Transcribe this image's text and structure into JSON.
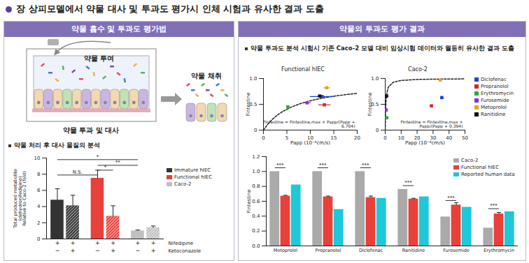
{
  "header": {
    "title": "장 상피모델에서 약물 대사 및 투과도 평가시 인체 시험과 유사한 결과 도출"
  },
  "left_panel": {
    "title": "약물 흡수 및 투과도 평가법",
    "diagram": {
      "dose": "약물 투여",
      "collect": "약물 채취",
      "transport": "약물 투과 및 대사"
    },
    "subheading": "약물 처리 후 대사 물질의 분석"
  },
  "right_panel": {
    "title": "약물의 투과도 평가 결과",
    "subheading": "약물 투과도 분석 시험시 기존 Caco-2 모델 대비 임상시험 데이터와 월등히 유사한 결과 도출"
  },
  "chart_data": [
    {
      "type": "bar",
      "ylabel": [
        "Total produced metabolite",
        "(dehydronifedipine)",
        "Relative to Caco-2 (fold)"
      ],
      "ylim": [
        0,
        10
      ],
      "yticks": [
        0,
        2,
        4,
        6,
        8,
        10
      ],
      "x_rows": [
        {
          "label": "Nifedipine",
          "values": [
            "+",
            "+",
            "+",
            "+",
            "+",
            "+"
          ]
        },
        {
          "label": "Ketoconazole",
          "values": [
            "−",
            "+",
            "−",
            "+",
            "−",
            "+"
          ]
        }
      ],
      "series": [
        {
          "name": "Immature hIEC",
          "color": "#333333",
          "values": [
            4.8,
            4.1
          ],
          "errors": [
            1.4,
            1.3
          ]
        },
        {
          "name": "Functional hIEC",
          "color": "#e8403a",
          "values": [
            7.5,
            2.8
          ],
          "errors": [
            1.0,
            1.3
          ]
        },
        {
          "name": "Caco-2",
          "color": "#c0c0c0",
          "values": [
            1.0,
            1.4
          ],
          "errors": [
            0.1,
            0.2
          ]
        }
      ],
      "annotations": [
        {
          "label": "*",
          "from": 0,
          "to": 4,
          "y": 9.8
        },
        {
          "label": "**",
          "from": 2,
          "to": 4,
          "y": 9.1
        },
        {
          "label": "*",
          "from": 2,
          "to": 3,
          "y": 8.5
        },
        {
          "label": "N.S.",
          "from": 0,
          "to": 2,
          "y": 7.9
        }
      ],
      "legend": "right"
    },
    {
      "type": "scatter",
      "title": "Functional hIEC",
      "xlabel": "Papp (10⁻⁶cm/s)",
      "ylabel": "Fintestine",
      "marker": "square",
      "xlim": [
        0,
        20
      ],
      "xticks": [
        0,
        5,
        10,
        15,
        20
      ],
      "ylim": [
        0,
        1
      ],
      "yticks": [
        0,
        0.5,
        {
          "value": 1,
          "label": "1.0"
        }
      ],
      "series": [
        {
          "name": "Diclofenac",
          "color": "#2040e0",
          "x": [
            12.5
          ],
          "values": [
            0.65
          ],
          "x_errors": [
            2.6
          ]
        },
        {
          "name": "Propranolol",
          "color": "#e02424",
          "x": [
            13.0
          ],
          "values": [
            0.49
          ],
          "x_errors": [
            1.3
          ]
        },
        {
          "name": "Erythromycin",
          "color": "#2faa3a",
          "x": [
            5.2
          ],
          "values": [
            0.45
          ],
          "x_errors": [
            0.3
          ]
        },
        {
          "name": "Furosemide",
          "color": "#8b2fd6",
          "x": [
            9.3
          ],
          "values": [
            0.53
          ],
          "x_errors": [
            0.8
          ]
        },
        {
          "name": "Metoprolol",
          "color": "#f0a020",
          "x": [
            13.5
          ],
          "values": [
            0.82
          ],
          "x_errors": [
            0.7
          ]
        },
        {
          "name": "Ranitidine",
          "color": "#111111",
          "x": [
            12.0
          ],
          "values": [
            0.66
          ],
          "x_errors": [
            0.4
          ]
        }
      ],
      "fit": {
        "line_style": "dashed",
        "x": [
          0,
          1,
          2,
          3,
          4,
          6,
          8,
          10,
          12,
          14,
          16,
          18,
          20
        ],
        "values": [
          0,
          0.123,
          0.218,
          0.294,
          0.355,
          0.448,
          0.517,
          0.569,
          0.609,
          0.642,
          0.669,
          0.692,
          0.711
        ]
      },
      "annotations": [
        {
          "text": "Fintestine = Fintestine,max × Papp/(Papp + 6.704)"
        }
      ]
    },
    {
      "type": "scatter",
      "title": "Caco-2",
      "xlabel": "Papp (10⁻⁶cm/s)",
      "ylabel": "Fintestine",
      "marker": "square",
      "xlim": [
        0,
        50
      ],
      "xticks": [
        0,
        10,
        20,
        30,
        40,
        50
      ],
      "ylim": [
        0,
        1
      ],
      "yticks": [
        0,
        0.5,
        {
          "value": 1,
          "label": "1.0"
        }
      ],
      "series": [
        {
          "name": "Diclofenac",
          "color": "#2040e0",
          "x": [
            35.5
          ],
          "values": [
            0.63
          ],
          "x_errors": [
            1.2
          ]
        },
        {
          "name": "Propranolol",
          "color": "#e02424",
          "x": [
            29.0
          ],
          "values": [
            0.47
          ],
          "x_errors": [
            1.0
          ]
        },
        {
          "name": "Erythromycin",
          "color": "#2faa3a",
          "x": [
            1.0
          ],
          "values": [
            0.24
          ],
          "x_errors": [
            0.1
          ]
        },
        {
          "name": "Furosemide",
          "color": "#8b2fd6",
          "x": [
            0.6
          ],
          "values": [
            0.39
          ],
          "x_errors": [
            0.1
          ]
        },
        {
          "name": "Metoprolol",
          "color": "#f0a020",
          "x": [
            34.5
          ],
          "values": [
            0.97
          ],
          "x_errors": [
            1.0
          ]
        },
        {
          "name": "Ranitidine",
          "color": "#111111",
          "x": [
            0.9
          ],
          "values": [
            0.66
          ],
          "x_errors": [
            0.1
          ]
        }
      ],
      "fit": {
        "line_style": "dashed",
        "x": [
          0,
          0.25,
          0.5,
          1,
          2,
          5,
          10,
          20,
          30,
          40,
          50
        ],
        "values": [
          0,
          0.388,
          0.559,
          0.717,
          0.835,
          0.927,
          0.962,
          0.981,
          0.987,
          0.99,
          0.992
        ]
      },
      "annotations": [
        {
          "text": "Fintestine = Fintestine,max × Papp/(Papp + 0.394)"
        }
      ],
      "legend": "right"
    },
    {
      "type": "bar",
      "ylabel": "Fintestine",
      "categories": [
        "Metoprolol",
        "Propranolol",
        "Diclofenac",
        "Ranitidine",
        "Furosemide",
        "Erythromycin"
      ],
      "ylim": [
        0,
        1.2
      ],
      "yticks": [
        {
          "value": 0,
          "label": "0.0"
        },
        0.2,
        0.4,
        0.6,
        0.8,
        {
          "value": 1,
          "label": "1.0"
        },
        1.2
      ],
      "series": [
        {
          "name": "Caco-2",
          "color": "#aaaaaa",
          "values": [
            1.0,
            1.0,
            1.0,
            0.76,
            0.39,
            0.24
          ]
        },
        {
          "name": "Functional hIEC",
          "color": "#e8403a",
          "values": [
            0.67,
            0.66,
            0.65,
            0.63,
            0.55,
            0.43
          ],
          "errors": [
            0.01,
            0.01,
            0.02,
            0.01,
            0.03,
            0.02
          ]
        },
        {
          "name": "Reported human data",
          "color": "#1ec8d8",
          "values": [
            0.82,
            0.49,
            0.64,
            0.66,
            0.52,
            0.46
          ]
        }
      ],
      "annotations": [
        {
          "category": "Metoprolol",
          "label": "***",
          "y": 1.05
        },
        {
          "category": "Propranolol",
          "label": "***",
          "y": 1.05
        },
        {
          "category": "Diclofenac",
          "label": "***",
          "y": 1.05
        },
        {
          "category": "Ranitidine",
          "label": "***",
          "y": 0.81
        },
        {
          "category": "Furosemide",
          "label": "***",
          "y": 0.61
        },
        {
          "category": "Erythromycin",
          "label": "***",
          "y": 0.5
        }
      ],
      "legend": "top-right"
    }
  ]
}
